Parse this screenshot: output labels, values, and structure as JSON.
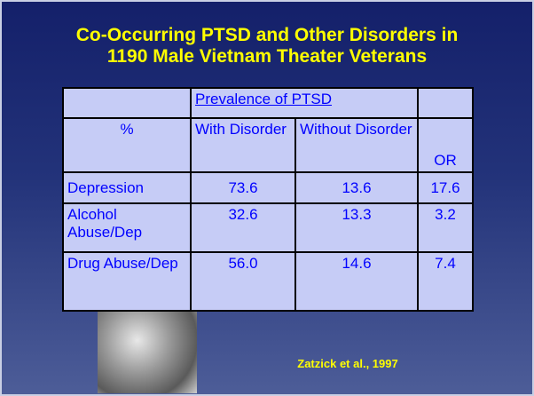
{
  "slide": {
    "title": [
      "Co-Occurring PTSD and Other Disorders in",
      "1190 Male Vietnam Theater Veterans"
    ],
    "table": {
      "group_header": "Prevalence of PTSD",
      "header": [
        "%",
        "With Disorder",
        "Without Disorder",
        "OR"
      ],
      "rows": [
        [
          "Depression",
          "73.6",
          "13.6",
          "17.6"
        ],
        [
          "Alcohol Abuse/Dep",
          "32.6",
          "13.3",
          "3.2"
        ],
        [
          "Drug Abuse/Dep",
          "56.0",
          "14.6",
          "7.4"
        ]
      ]
    },
    "citation": "Zatzick et al., 1997"
  }
}
